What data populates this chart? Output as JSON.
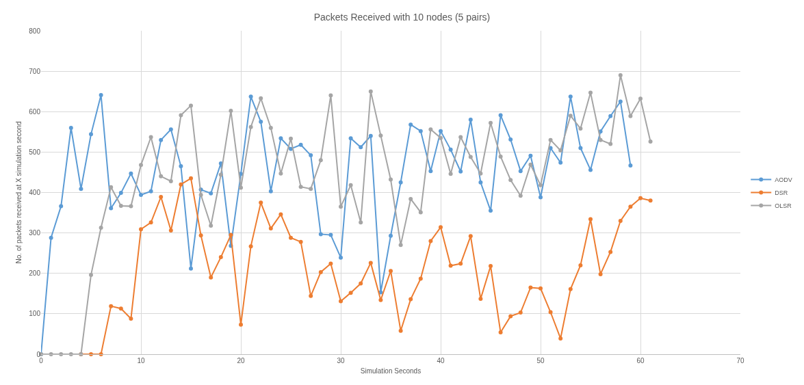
{
  "chart_data": {
    "type": "line",
    "title": "Packets Received with 10 nodes (5 pairs)",
    "xlabel": "Simulation Seconds",
    "ylabel": "No. of packets received at X simulation second",
    "xlim": [
      0,
      70
    ],
    "xticks": [
      0,
      10,
      20,
      30,
      40,
      50,
      60,
      70
    ],
    "ylim": [
      0,
      800
    ],
    "yticks": [
      0,
      100,
      200,
      300,
      400,
      500,
      600,
      700,
      800
    ],
    "grid": true,
    "legend": "right",
    "marker": "circle",
    "line_style": "solid",
    "series": [
      {
        "name": "AODV",
        "color": "#5b9bd5",
        "x": [
          0,
          1,
          2,
          3,
          4,
          5,
          6,
          7,
          8,
          9,
          10,
          11,
          12,
          13,
          14,
          15,
          16,
          17,
          18,
          19,
          20,
          21,
          22,
          23,
          24,
          25,
          26,
          27,
          28,
          29,
          30,
          31,
          32,
          33,
          34,
          35,
          36,
          37,
          38,
          39,
          40,
          41,
          42,
          43,
          44,
          45,
          46,
          47,
          48,
          49,
          50,
          51,
          52,
          53,
          54,
          55,
          56,
          57,
          58,
          59
        ],
        "values": [
          0,
          288,
          366,
          560,
          409,
          544,
          641,
          361,
          399,
          447,
          394,
          403,
          530,
          556,
          465,
          212,
          407,
          398,
          472,
          268,
          446,
          637,
          575,
          403,
          534,
          508,
          518,
          492,
          297,
          295,
          239,
          534,
          512,
          540,
          153,
          293,
          425,
          568,
          552,
          453,
          552,
          506,
          452,
          580,
          425,
          355,
          591,
          531,
          453,
          491,
          388,
          510,
          474,
          637,
          510,
          456,
          551,
          589,
          625,
          467
        ]
      },
      {
        "name": "DSR",
        "color": "#ed7d31",
        "x": [
          4,
          5,
          6,
          7,
          8,
          9,
          10,
          11,
          12,
          13,
          14,
          15,
          16,
          17,
          18,
          19,
          20,
          21,
          22,
          23,
          24,
          25,
          26,
          27,
          28,
          29,
          30,
          31,
          32,
          33,
          34,
          35,
          36,
          37,
          38,
          39,
          40,
          41,
          42,
          43,
          44,
          45,
          46,
          47,
          48,
          49,
          50,
          51,
          52,
          53,
          54,
          55,
          56,
          57,
          58,
          59,
          60,
          61
        ],
        "values": [
          0,
          0,
          0,
          119,
          113,
          88,
          309,
          326,
          389,
          306,
          420,
          435,
          294,
          190,
          240,
          295,
          73,
          267,
          375,
          311,
          346,
          288,
          278,
          144,
          203,
          224,
          131,
          152,
          175,
          226,
          134,
          206,
          58,
          136,
          187,
          280,
          314,
          219,
          224,
          292,
          137,
          218,
          54,
          94,
          103,
          165,
          163,
          104,
          39,
          161,
          220,
          334,
          198,
          253,
          330,
          365,
          386,
          380
        ]
      },
      {
        "name": "OLSR",
        "color": "#a5a5a5",
        "x": [
          0,
          1,
          2,
          3,
          4,
          5,
          6,
          7,
          8,
          9,
          10,
          11,
          12,
          13,
          14,
          15,
          16,
          17,
          18,
          19,
          20,
          21,
          22,
          23,
          24,
          25,
          26,
          27,
          28,
          29,
          30,
          31,
          32,
          33,
          34,
          35,
          36,
          37,
          38,
          39,
          40,
          41,
          42,
          43,
          44,
          45,
          46,
          47,
          48,
          49,
          50,
          51,
          52,
          53,
          54,
          55,
          56,
          57,
          58,
          59,
          60,
          61
        ],
        "values": [
          0,
          0,
          0,
          0,
          0,
          196,
          313,
          413,
          367,
          366,
          468,
          537,
          440,
          428,
          591,
          615,
          394,
          318,
          444,
          602,
          412,
          562,
          633,
          560,
          447,
          533,
          414,
          409,
          480,
          640,
          365,
          418,
          326,
          650,
          541,
          432,
          270,
          384,
          351,
          556,
          535,
          446,
          537,
          488,
          447,
          572,
          489,
          431,
          392,
          469,
          418,
          530,
          504,
          590,
          558,
          647,
          530,
          520,
          690,
          589,
          632,
          526
        ]
      }
    ]
  }
}
